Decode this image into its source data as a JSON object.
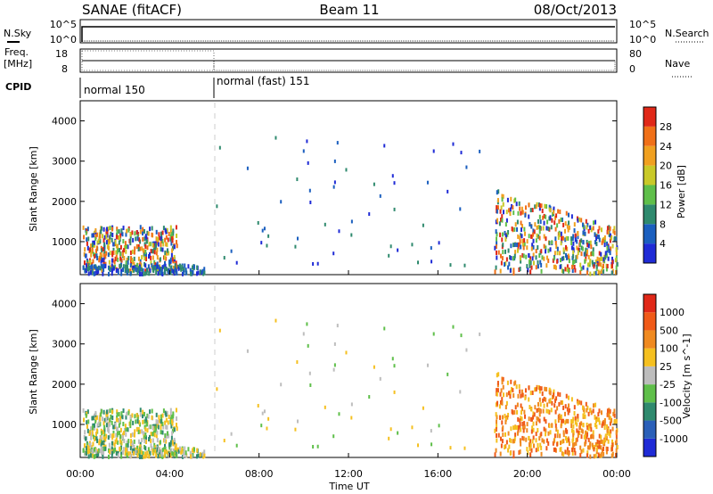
{
  "header": {
    "station": "SANAE (fitACF)",
    "beam": "Beam 11",
    "date": "08/Oct/2013"
  },
  "top_panels": {
    "nsky_label": "N.Sky",
    "nsky_ticks": [
      "10^5",
      "10^0"
    ],
    "nsearch_label": "N.Search",
    "nsearch_ticks": [
      "10^5",
      "10^0"
    ],
    "freq_label": "Freq.",
    "freq_unit": "[MHz]",
    "freq_ticks": [
      "18",
      "8"
    ],
    "nave_label": "Nave",
    "nave_ticks": [
      "80",
      "0"
    ],
    "cpid_label": "CPID",
    "cpid_segments": [
      {
        "name": "normal 150",
        "start_hour": 0
      },
      {
        "name": "normal (fast) 151",
        "start_hour": 6
      }
    ]
  },
  "time_axis": {
    "label": "Time UT",
    "ticks": [
      "00:00",
      "04:00",
      "08:00",
      "12:00",
      "16:00",
      "20:00",
      "00:00"
    ]
  },
  "range_axis": {
    "label": "Slant Range [km]",
    "ticks": [
      "1000",
      "2000",
      "3000",
      "4000"
    ]
  },
  "power_scale": {
    "label": "Power [dB]",
    "ticks": [
      "4",
      "8",
      "12",
      "16",
      "20",
      "24",
      "28"
    ],
    "colors": [
      "#1f2bd6",
      "#1b5fbf",
      "#2f8a6e",
      "#5fbf4a",
      "#c9c928",
      "#f0a020",
      "#f07018",
      "#e02818"
    ]
  },
  "velocity_scale": {
    "label": "Velocity [m s^-1]",
    "ticks": [
      "1000",
      "500",
      "100",
      "25",
      "-25",
      "-100",
      "-500",
      "-1000"
    ],
    "colors": [
      "#1f2bd6",
      "#2a5fb8",
      "#2f8a6e",
      "#5fbf4a",
      "#bdbdbd",
      "#f5c020",
      "#f08a20",
      "#f05a18",
      "#e02818"
    ]
  },
  "chart_data": {
    "type": "heatmap",
    "x_range_hours": [
      0,
      24
    ],
    "y_range_km": [
      180,
      4500
    ],
    "scatter_regions": [
      {
        "name": "morning-echo",
        "t_start": 0.1,
        "t_end": 4.3,
        "r_min": 250,
        "r_max": 1350,
        "dominant_power": "mixed",
        "dominant_velocity": "positive/negative"
      },
      {
        "name": "near-range-strip",
        "t_start": 0.1,
        "t_end": 5.6,
        "r_min": 180,
        "r_max": 400,
        "dominant_power": "low"
      },
      {
        "name": "evening-echo",
        "t_start": 18.5,
        "t_end": 24.0,
        "r_min": 180,
        "r_max": 2300,
        "dominant_power": "high",
        "dominant_velocity": "negative"
      }
    ]
  }
}
